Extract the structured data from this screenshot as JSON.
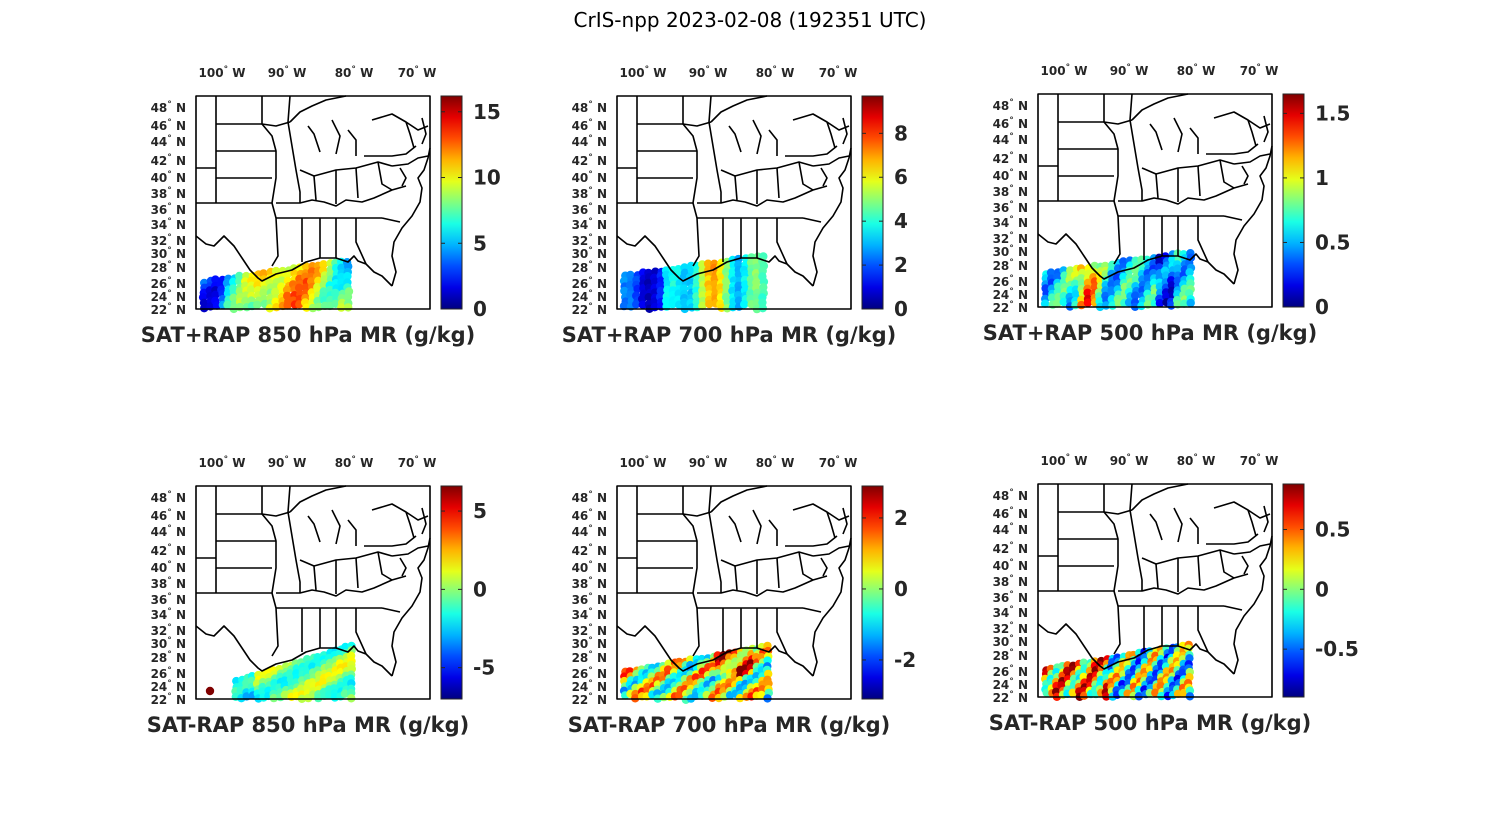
{
  "title": "CrIS-npp 2023-02-08 (192351 UTC)",
  "lon_labels": [
    "100",
    "90",
    "80",
    "70"
  ],
  "lon_suffix": "W",
  "lat_labels": [
    "48",
    "46",
    "44",
    "42",
    "40",
    "38",
    "36",
    "34",
    "32",
    "30",
    "28",
    "26",
    "24",
    "22"
  ],
  "lat_suffix": "N",
  "degree_symbol": "°",
  "colormap": "jet",
  "panels": [
    {
      "title": "SAT+RAP 850 hPa MR (g/kg)",
      "cb_ticks": [
        "0",
        "5",
        "10",
        "15"
      ],
      "cb_range": [
        0,
        16.2
      ]
    },
    {
      "title": "SAT+RAP 700 hPa MR (g/kg)",
      "cb_ticks": [
        "0",
        "2",
        "4",
        "6",
        "8"
      ],
      "cb_range": [
        0,
        9.7
      ]
    },
    {
      "title": "SAT+RAP 500 hPa MR (g/kg)",
      "cb_ticks": [
        "0",
        "0.5",
        "1",
        "1.5"
      ],
      "cb_range": [
        0,
        1.65
      ]
    },
    {
      "title": "SAT-RAP 850 hPa MR (g/kg)",
      "cb_ticks": [
        "-5",
        "0",
        "5"
      ],
      "cb_range": [
        -7,
        6.6
      ]
    },
    {
      "title": "SAT-RAP 700 hPa MR (g/kg)",
      "cb_ticks": [
        "-2",
        "0",
        "2"
      ],
      "cb_range": [
        -3.1,
        2.9
      ]
    },
    {
      "title": "SAT-RAP 500 hPa MR (g/kg)",
      "cb_ticks": [
        "-0.5",
        "0",
        "0.5"
      ],
      "cb_range": [
        -0.9,
        0.88
      ]
    }
  ]
}
